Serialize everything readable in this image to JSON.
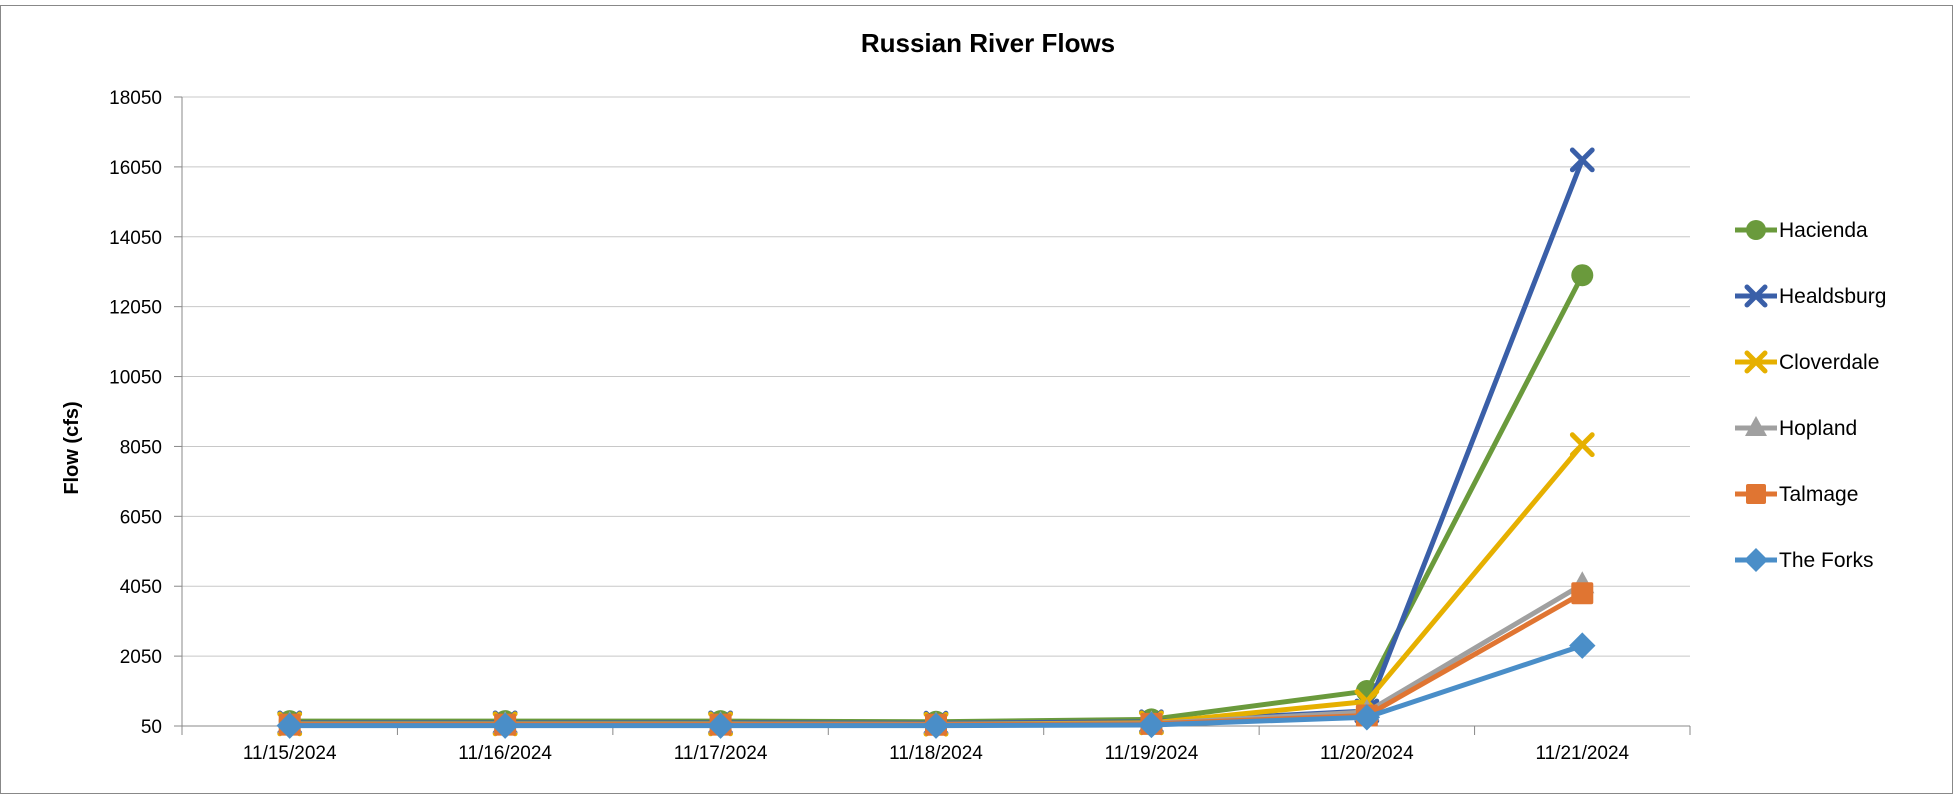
{
  "chart_data": {
    "type": "line",
    "title": "Russian River Flows",
    "xlabel": "",
    "ylabel": "Flow (cfs)",
    "categories": [
      "11/15/2024",
      "11/16/2024",
      "11/17/2024",
      "11/18/2024",
      "11/19/2024",
      "11/20/2024",
      "11/21/2024"
    ],
    "ylim": [
      50,
      18050
    ],
    "yticks": [
      "50",
      "2050",
      "4050",
      "6050",
      "8050",
      "10050",
      "12050",
      "14050",
      "16050",
      "18050"
    ],
    "grid": true,
    "legend_position": "right",
    "series": [
      {
        "name": "Hacienda",
        "color": "#6a9a3c",
        "marker": "circle",
        "values": [
          190,
          190,
          190,
          170,
          240,
          1050,
          12950
        ]
      },
      {
        "name": "Healdsburg",
        "color": "#3a5fa8",
        "marker": "x-cross",
        "values": [
          140,
          140,
          140,
          130,
          170,
          480,
          16250
        ]
      },
      {
        "name": "Cloverdale",
        "color": "#e6b000",
        "marker": "x-cross",
        "values": [
          110,
          110,
          110,
          100,
          140,
          750,
          8100
        ]
      },
      {
        "name": "Hopland",
        "color": "#a0a0a0",
        "marker": "triangle",
        "values": [
          100,
          100,
          100,
          95,
          120,
          450,
          4100
        ]
      },
      {
        "name": "Talmage",
        "color": "#e07532",
        "marker": "square",
        "values": [
          90,
          90,
          90,
          85,
          110,
          350,
          3850
        ]
      },
      {
        "name": "The Forks",
        "color": "#4a8ec8",
        "marker": "diamond",
        "values": [
          60,
          60,
          60,
          60,
          80,
          300,
          2350
        ]
      }
    ]
  }
}
